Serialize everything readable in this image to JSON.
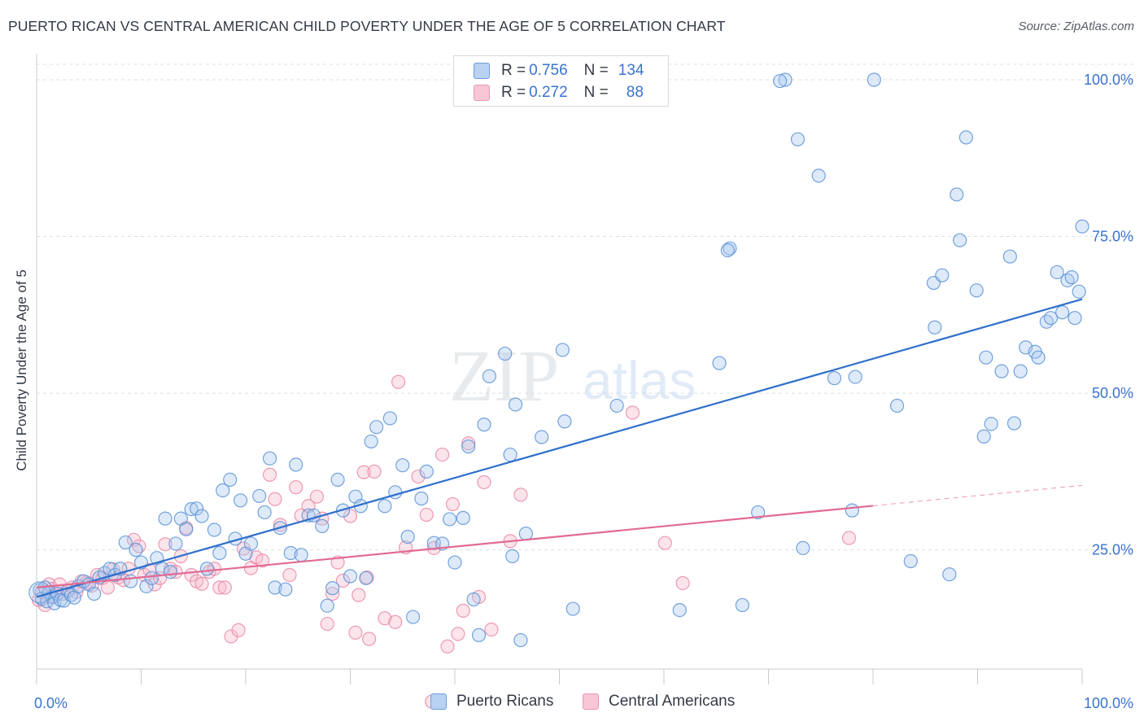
{
  "header": {
    "title": "PUERTO RICAN VS CENTRAL AMERICAN CHILD POVERTY UNDER THE AGE OF 5 CORRELATION CHART",
    "source": "Source: ZipAtlas.com"
  },
  "legend": {
    "rows": [
      {
        "r_label": "R =",
        "r_value": "0.756",
        "n_label": "N =",
        "n_value": "134"
      },
      {
        "r_label": "R =",
        "r_value": "0.272",
        "n_label": "N =",
        "n_value": "88"
      }
    ],
    "bottom": [
      "Puerto Ricans",
      "Central Americans"
    ]
  },
  "watermark": {
    "zip": "ZIP",
    "atlas": "atlas"
  },
  "colors": {
    "blue_fill": "#a9c8ef",
    "blue_stroke": "#5b93d6",
    "blue_line": "#2f6fcc",
    "pink_fill": "#f6b8cb",
    "pink_stroke": "#e98aa6",
    "pink_line": "#e26a93",
    "grid": "#dcdfe4",
    "axis_text": "#3a73d0"
  },
  "chart_data": {
    "type": "scatter",
    "title": "PUERTO RICAN VS CENTRAL AMERICAN CHILD POVERTY UNDER THE AGE OF 5 CORRELATION CHART",
    "xlabel": "",
    "ylabel": "Child Poverty Under the Age of 5",
    "xlim": [
      0,
      100
    ],
    "ylim": [
      0,
      103
    ],
    "x_tick_labels": [
      "0.0%",
      "100.0%"
    ],
    "y_ticks": [
      25,
      50,
      75,
      100
    ],
    "y_tick_labels": [
      "25.0%",
      "50.0%",
      "75.0%",
      "100.0%"
    ],
    "grid": true,
    "legend_placement": "top-center",
    "series": [
      {
        "name": "Puerto Ricans",
        "R": 0.756,
        "N": 134,
        "trend": {
          "x0": 0,
          "y0": 17.5,
          "x1": 100,
          "y1": 65.0,
          "dashed_from": null
        },
        "points": [
          [
            0.3,
            18.6
          ],
          [
            0.5,
            17.2
          ],
          [
            0.8,
            19.0
          ],
          [
            1.0,
            16.8
          ],
          [
            1.2,
            18.2
          ],
          [
            1.5,
            17.5
          ],
          [
            1.7,
            16.5
          ],
          [
            2.0,
            18.0
          ],
          [
            2.3,
            17.0
          ],
          [
            2.6,
            16.9
          ],
          [
            3.0,
            18.5
          ],
          [
            3.3,
            17.8
          ],
          [
            3.6,
            17.4
          ],
          [
            4.0,
            19.2
          ],
          [
            4.5,
            20.0
          ],
          [
            5.0,
            19.5
          ],
          [
            5.5,
            18.0
          ],
          [
            6.0,
            20.6
          ],
          [
            6.5,
            21.3
          ],
          [
            7.0,
            22.0
          ],
          [
            7.5,
            21.0
          ],
          [
            8.0,
            22.0
          ],
          [
            8.5,
            26.2
          ],
          [
            9.0,
            20.0
          ],
          [
            9.5,
            25.0
          ],
          [
            10.0,
            23.0
          ],
          [
            10.5,
            19.2
          ],
          [
            11.0,
            20.5
          ],
          [
            11.5,
            23.7
          ],
          [
            12.0,
            22.0
          ],
          [
            12.3,
            30.0
          ],
          [
            12.8,
            21.5
          ],
          [
            13.3,
            26.0
          ],
          [
            13.8,
            30.0
          ],
          [
            14.3,
            28.3
          ],
          [
            14.8,
            31.5
          ],
          [
            15.3,
            31.6
          ],
          [
            15.8,
            30.4
          ],
          [
            16.3,
            22.0
          ],
          [
            17.0,
            28.2
          ],
          [
            17.5,
            24.5
          ],
          [
            17.8,
            34.5
          ],
          [
            18.5,
            36.2
          ],
          [
            19.0,
            26.8
          ],
          [
            19.5,
            32.9
          ],
          [
            20.0,
            24.4
          ],
          [
            20.5,
            26.0
          ],
          [
            21.3,
            33.6
          ],
          [
            21.8,
            31.0
          ],
          [
            22.3,
            39.6
          ],
          [
            22.8,
            19.0
          ],
          [
            23.3,
            28.5
          ],
          [
            23.8,
            18.7
          ],
          [
            24.3,
            24.5
          ],
          [
            24.8,
            38.6
          ],
          [
            25.3,
            24.2
          ],
          [
            26.0,
            30.5
          ],
          [
            26.5,
            30.5
          ],
          [
            27.3,
            28.8
          ],
          [
            27.8,
            16.1
          ],
          [
            28.3,
            18.9
          ],
          [
            28.8,
            36.2
          ],
          [
            29.3,
            31.3
          ],
          [
            30.0,
            20.8
          ],
          [
            30.5,
            33.5
          ],
          [
            31.0,
            32.0
          ],
          [
            31.5,
            20.5
          ],
          [
            32.0,
            42.3
          ],
          [
            32.5,
            44.6
          ],
          [
            33.3,
            32.0
          ],
          [
            33.8,
            46.0
          ],
          [
            34.3,
            34.2
          ],
          [
            35.0,
            38.5
          ],
          [
            35.5,
            27.1
          ],
          [
            36.0,
            14.3
          ],
          [
            36.8,
            33.2
          ],
          [
            37.3,
            37.5
          ],
          [
            38.0,
            26.1
          ],
          [
            38.8,
            26.0
          ],
          [
            39.5,
            29.9
          ],
          [
            40.0,
            23.0
          ],
          [
            40.8,
            30.1
          ],
          [
            41.3,
            41.5
          ],
          [
            41.8,
            17.1
          ],
          [
            42.3,
            11.4
          ],
          [
            42.8,
            45.0
          ],
          [
            43.3,
            52.7
          ],
          [
            44.8,
            56.3
          ],
          [
            45.3,
            40.2
          ],
          [
            45.8,
            48.2
          ],
          [
            45.5,
            24.0
          ],
          [
            46.8,
            27.6
          ],
          [
            48.3,
            43.0
          ],
          [
            50.3,
            56.9
          ],
          [
            50.5,
            45.5
          ],
          [
            46.3,
            10.6
          ],
          [
            51.3,
            15.6
          ],
          [
            55.5,
            48.0
          ],
          [
            61.5,
            15.4
          ],
          [
            65.3,
            54.8
          ],
          [
            66.3,
            73.1
          ],
          [
            66.1,
            72.8
          ],
          [
            67.5,
            16.2
          ],
          [
            69.0,
            31.0
          ],
          [
            71.6,
            100.0
          ],
          [
            72.8,
            90.5
          ],
          [
            73.3,
            25.3
          ],
          [
            74.8,
            84.7
          ],
          [
            76.3,
            52.4
          ],
          [
            78.3,
            52.6
          ],
          [
            82.3,
            48.0
          ],
          [
            83.6,
            23.2
          ],
          [
            85.8,
            67.6
          ],
          [
            85.9,
            60.5
          ],
          [
            86.6,
            68.8
          ],
          [
            87.3,
            21.1
          ],
          [
            88.0,
            81.7
          ],
          [
            88.3,
            74.4
          ],
          [
            88.9,
            90.8
          ],
          [
            89.9,
            66.4
          ],
          [
            90.6,
            43.1
          ],
          [
            90.8,
            55.7
          ],
          [
            91.3,
            45.1
          ],
          [
            92.3,
            53.5
          ],
          [
            93.1,
            71.8
          ],
          [
            93.5,
            45.2
          ],
          [
            94.1,
            53.5
          ],
          [
            94.6,
            57.3
          ],
          [
            95.5,
            56.6
          ],
          [
            95.8,
            55.7
          ],
          [
            96.6,
            61.4
          ],
          [
            97.0,
            62.0
          ],
          [
            97.6,
            69.3
          ],
          [
            98.1,
            62.9
          ],
          [
            98.6,
            68.0
          ],
          [
            99.0,
            68.5
          ],
          [
            99.7,
            66.2
          ],
          [
            100.0,
            76.6
          ],
          [
            99.3,
            62.0
          ],
          [
            80.1,
            100.0
          ],
          [
            78.0,
            31.3
          ],
          [
            71.1,
            99.8
          ]
        ]
      },
      {
        "name": "Central Americans",
        "R": 0.272,
        "N": 88,
        "trend": {
          "x0": 0,
          "y0": 19.0,
          "x1": 100,
          "y1": 35.3,
          "dashed_from": 80
        },
        "points": [
          [
            0.2,
            17.0
          ],
          [
            0.5,
            18.3
          ],
          [
            0.8,
            16.2
          ],
          [
            1.2,
            19.5
          ],
          [
            1.5,
            18.8
          ],
          [
            1.8,
            17.6
          ],
          [
            2.2,
            19.5
          ],
          [
            2.5,
            18.0
          ],
          [
            3.0,
            18.5
          ],
          [
            3.4,
            19.0
          ],
          [
            3.8,
            18.3
          ],
          [
            4.3,
            20.0
          ],
          [
            4.8,
            19.8
          ],
          [
            5.3,
            19.3
          ],
          [
            5.8,
            21.0
          ],
          [
            6.3,
            20.5
          ],
          [
            6.8,
            19.0
          ],
          [
            7.3,
            21.9
          ],
          [
            7.8,
            20.6
          ],
          [
            8.3,
            20.2
          ],
          [
            8.8,
            22.0
          ],
          [
            9.3,
            26.6
          ],
          [
            9.8,
            25.6
          ],
          [
            10.3,
            21.0
          ],
          [
            10.8,
            21.8
          ],
          [
            11.3,
            19.5
          ],
          [
            11.8,
            20.5
          ],
          [
            12.3,
            25.9
          ],
          [
            12.8,
            22.0
          ],
          [
            13.3,
            21.5
          ],
          [
            13.8,
            24.0
          ],
          [
            14.3,
            28.5
          ],
          [
            14.8,
            21.0
          ],
          [
            15.3,
            20.0
          ],
          [
            15.8,
            19.6
          ],
          [
            16.5,
            21.5
          ],
          [
            17.0,
            22.0
          ],
          [
            17.5,
            19.0
          ],
          [
            18.0,
            19.0
          ],
          [
            18.6,
            11.2
          ],
          [
            19.3,
            12.2
          ],
          [
            19.8,
            25.2
          ],
          [
            20.5,
            22.1
          ],
          [
            21.0,
            23.8
          ],
          [
            21.6,
            23.3
          ],
          [
            22.3,
            37.0
          ],
          [
            22.8,
            33.1
          ],
          [
            23.3,
            29.0
          ],
          [
            24.2,
            21.0
          ],
          [
            24.8,
            35.0
          ],
          [
            25.3,
            30.5
          ],
          [
            26.0,
            32.0
          ],
          [
            26.8,
            33.5
          ],
          [
            27.3,
            30.0
          ],
          [
            27.8,
            13.2
          ],
          [
            28.3,
            18.0
          ],
          [
            28.8,
            23.0
          ],
          [
            29.3,
            20.1
          ],
          [
            30.0,
            30.4
          ],
          [
            30.5,
            11.8
          ],
          [
            31.3,
            37.4
          ],
          [
            31.8,
            10.8
          ],
          [
            32.3,
            37.5
          ],
          [
            33.3,
            14.1
          ],
          [
            34.3,
            13.5
          ],
          [
            34.6,
            51.8
          ],
          [
            35.3,
            25.4
          ],
          [
            36.5,
            36.7
          ],
          [
            37.3,
            30.6
          ],
          [
            38.0,
            25.3
          ],
          [
            38.8,
            40.2
          ],
          [
            39.3,
            9.6
          ],
          [
            40.3,
            11.6
          ],
          [
            40.8,
            15.3
          ],
          [
            41.3,
            42.0
          ],
          [
            42.3,
            17.5
          ],
          [
            42.8,
            35.8
          ],
          [
            43.5,
            12.3
          ],
          [
            45.3,
            26.4
          ],
          [
            46.3,
            33.8
          ],
          [
            37.8,
            0.8
          ],
          [
            39.8,
            32.3
          ],
          [
            31.6,
            20.6
          ],
          [
            30.8,
            17.8
          ],
          [
            57.0,
            46.9
          ],
          [
            60.1,
            26.1
          ],
          [
            61.8,
            19.7
          ],
          [
            77.7,
            26.9
          ]
        ]
      }
    ]
  }
}
